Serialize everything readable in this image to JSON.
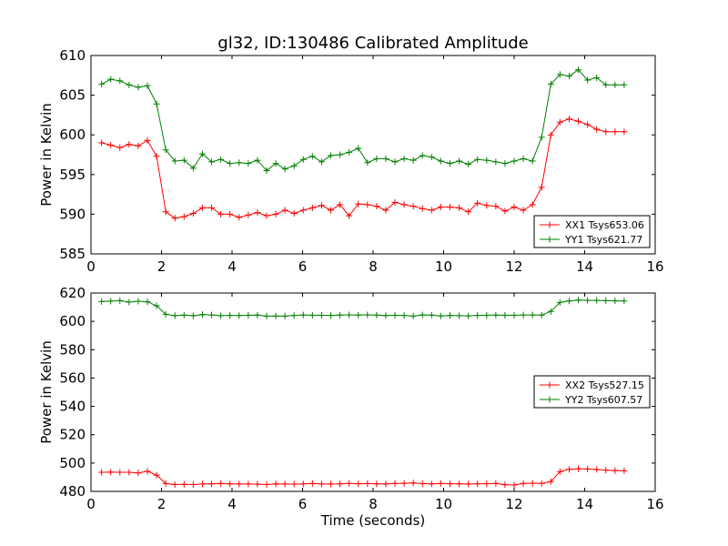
{
  "title": "gl32, ID:130486 Calibrated Amplitude",
  "chart_data": [
    {
      "type": "line",
      "xlabel": "",
      "ylabel": "Power in Kelvin",
      "xlim": [
        0,
        16
      ],
      "ylim": [
        585,
        610
      ],
      "xticks": [
        0,
        2,
        4,
        6,
        8,
        10,
        12,
        14,
        16
      ],
      "yticks": [
        585,
        590,
        595,
        600,
        605,
        610
      ],
      "grid": false,
      "legend_position": "lower-right",
      "series": [
        {
          "name": "XX1 Tsys653.06",
          "color": "#ff0000",
          "marker": "+",
          "x": [
            0.3,
            0.56,
            0.82,
            1.08,
            1.34,
            1.6,
            1.86,
            2.12,
            2.38,
            2.64,
            2.9,
            3.16,
            3.42,
            3.68,
            3.94,
            4.2,
            4.46,
            4.72,
            4.98,
            5.24,
            5.5,
            5.76,
            6.02,
            6.28,
            6.54,
            6.8,
            7.06,
            7.32,
            7.58,
            7.84,
            8.1,
            8.36,
            8.62,
            8.88,
            9.14,
            9.4,
            9.66,
            9.92,
            10.18,
            10.44,
            10.7,
            10.96,
            11.22,
            11.48,
            11.74,
            12.0,
            12.26,
            12.52,
            12.78,
            13.04,
            13.3,
            13.56,
            13.82,
            14.08,
            14.34,
            14.6,
            14.86,
            15.12
          ],
          "y": [
            599.0,
            598.7,
            598.4,
            598.8,
            598.6,
            599.3,
            597.3,
            590.3,
            589.5,
            589.7,
            590.1,
            590.8,
            590.8,
            590.0,
            590.0,
            589.6,
            589.9,
            590.2,
            589.8,
            590.0,
            590.5,
            590.1,
            590.5,
            590.8,
            591.1,
            590.5,
            591.2,
            589.8,
            591.3,
            591.2,
            591.0,
            590.5,
            591.5,
            591.2,
            591.0,
            590.7,
            590.5,
            590.9,
            590.9,
            590.8,
            590.3,
            591.4,
            591.1,
            591.0,
            590.4,
            590.9,
            590.5,
            591.2,
            593.4,
            600.0,
            601.6,
            602.0,
            601.7,
            601.3,
            600.7,
            600.4,
            600.4,
            600.4
          ]
        },
        {
          "name": "YY1 Tsys621.77",
          "color": "#008000",
          "marker": "+",
          "x": [
            0.3,
            0.56,
            0.82,
            1.08,
            1.34,
            1.6,
            1.86,
            2.12,
            2.38,
            2.64,
            2.9,
            3.16,
            3.42,
            3.68,
            3.94,
            4.2,
            4.46,
            4.72,
            4.98,
            5.24,
            5.5,
            5.76,
            6.02,
            6.28,
            6.54,
            6.8,
            7.06,
            7.32,
            7.58,
            7.84,
            8.1,
            8.36,
            8.62,
            8.88,
            9.14,
            9.4,
            9.66,
            9.92,
            10.18,
            10.44,
            10.7,
            10.96,
            11.22,
            11.48,
            11.74,
            12.0,
            12.26,
            12.52,
            12.78,
            13.04,
            13.3,
            13.56,
            13.82,
            14.08,
            14.34,
            14.6,
            14.86,
            15.12
          ],
          "y": [
            606.4,
            607.0,
            606.8,
            606.3,
            606.0,
            606.2,
            603.9,
            598.1,
            596.7,
            596.8,
            595.8,
            597.6,
            596.6,
            596.9,
            596.4,
            596.5,
            596.4,
            596.8,
            595.5,
            596.4,
            595.7,
            596.1,
            596.9,
            597.3,
            596.6,
            597.4,
            597.5,
            597.8,
            598.3,
            596.5,
            597.0,
            597.0,
            596.6,
            597.0,
            596.8,
            597.4,
            597.2,
            596.7,
            596.4,
            596.7,
            596.3,
            596.9,
            596.8,
            596.6,
            596.4,
            596.7,
            597.0,
            596.7,
            599.7,
            606.4,
            607.6,
            607.4,
            608.2,
            606.9,
            607.2,
            606.3,
            606.3,
            606.3
          ]
        }
      ]
    },
    {
      "type": "line",
      "xlabel": "Time (seconds)",
      "ylabel": "Power in Kelvin",
      "xlim": [
        0,
        16
      ],
      "ylim": [
        480,
        620
      ],
      "xticks": [
        0,
        2,
        4,
        6,
        8,
        10,
        12,
        14,
        16
      ],
      "yticks": [
        480,
        500,
        520,
        540,
        560,
        580,
        600,
        620
      ],
      "grid": false,
      "legend_position": "center-right",
      "series": [
        {
          "name": "XX2 Tsys527.15",
          "color": "#ff0000",
          "marker": "+",
          "x": [
            0.3,
            0.56,
            0.82,
            1.08,
            1.34,
            1.6,
            1.86,
            2.12,
            2.38,
            2.64,
            2.9,
            3.16,
            3.42,
            3.68,
            3.94,
            4.2,
            4.46,
            4.72,
            4.98,
            5.24,
            5.5,
            5.76,
            6.02,
            6.28,
            6.54,
            6.8,
            7.06,
            7.32,
            7.58,
            7.84,
            8.1,
            8.36,
            8.62,
            8.88,
            9.14,
            9.4,
            9.66,
            9.92,
            10.18,
            10.44,
            10.7,
            10.96,
            11.22,
            11.48,
            11.74,
            12.0,
            12.26,
            12.52,
            12.78,
            13.04,
            13.3,
            13.56,
            13.82,
            14.08,
            14.34,
            14.6,
            14.86,
            15.12
          ],
          "y": [
            493.5,
            493.6,
            493.5,
            493.5,
            493.0,
            494.2,
            491.5,
            485.5,
            484.8,
            485.0,
            484.8,
            485.2,
            485.3,
            485.6,
            485.3,
            485.2,
            485.2,
            485.1,
            484.8,
            485.3,
            485.2,
            485.1,
            485.3,
            485.6,
            485.2,
            485.2,
            485.3,
            485.7,
            485.4,
            485.5,
            485.3,
            485.2,
            485.6,
            485.7,
            486.0,
            485.5,
            485.3,
            485.6,
            485.4,
            485.3,
            485.2,
            485.4,
            485.4,
            485.6,
            484.7,
            484.5,
            485.6,
            485.8,
            485.6,
            486.9,
            494.0,
            495.6,
            496.0,
            495.8,
            495.5,
            495.0,
            494.7,
            494.5
          ]
        },
        {
          "name": "YY2 Tsys607.57",
          "color": "#008000",
          "marker": "+",
          "x": [
            0.3,
            0.56,
            0.82,
            1.08,
            1.34,
            1.6,
            1.86,
            2.12,
            2.38,
            2.64,
            2.9,
            3.16,
            3.42,
            3.68,
            3.94,
            4.2,
            4.46,
            4.72,
            4.98,
            5.24,
            5.5,
            5.76,
            6.02,
            6.28,
            6.54,
            6.8,
            7.06,
            7.32,
            7.58,
            7.84,
            8.1,
            8.36,
            8.62,
            8.88,
            9.14,
            9.4,
            9.66,
            9.92,
            10.18,
            10.44,
            10.7,
            10.96,
            11.22,
            11.48,
            11.74,
            12.0,
            12.26,
            12.52,
            12.78,
            13.04,
            13.3,
            13.56,
            13.82,
            14.08,
            14.34,
            14.6,
            14.86,
            15.12
          ],
          "y": [
            614.0,
            614.3,
            614.6,
            613.6,
            614.2,
            613.8,
            611.0,
            605.0,
            604.0,
            604.4,
            604.0,
            604.8,
            604.5,
            604.0,
            604.2,
            604.1,
            604.3,
            604.4,
            603.7,
            603.8,
            603.7,
            604.2,
            604.5,
            604.3,
            604.3,
            604.2,
            604.4,
            604.6,
            604.4,
            604.6,
            604.4,
            604.1,
            604.3,
            604.2,
            603.7,
            604.5,
            604.4,
            603.8,
            604.2,
            604.0,
            603.9,
            604.2,
            604.3,
            604.4,
            604.3,
            604.3,
            604.5,
            604.5,
            604.4,
            607.0,
            613.3,
            614.4,
            615.0,
            614.8,
            614.8,
            614.6,
            614.5,
            614.4
          ]
        }
      ]
    }
  ]
}
